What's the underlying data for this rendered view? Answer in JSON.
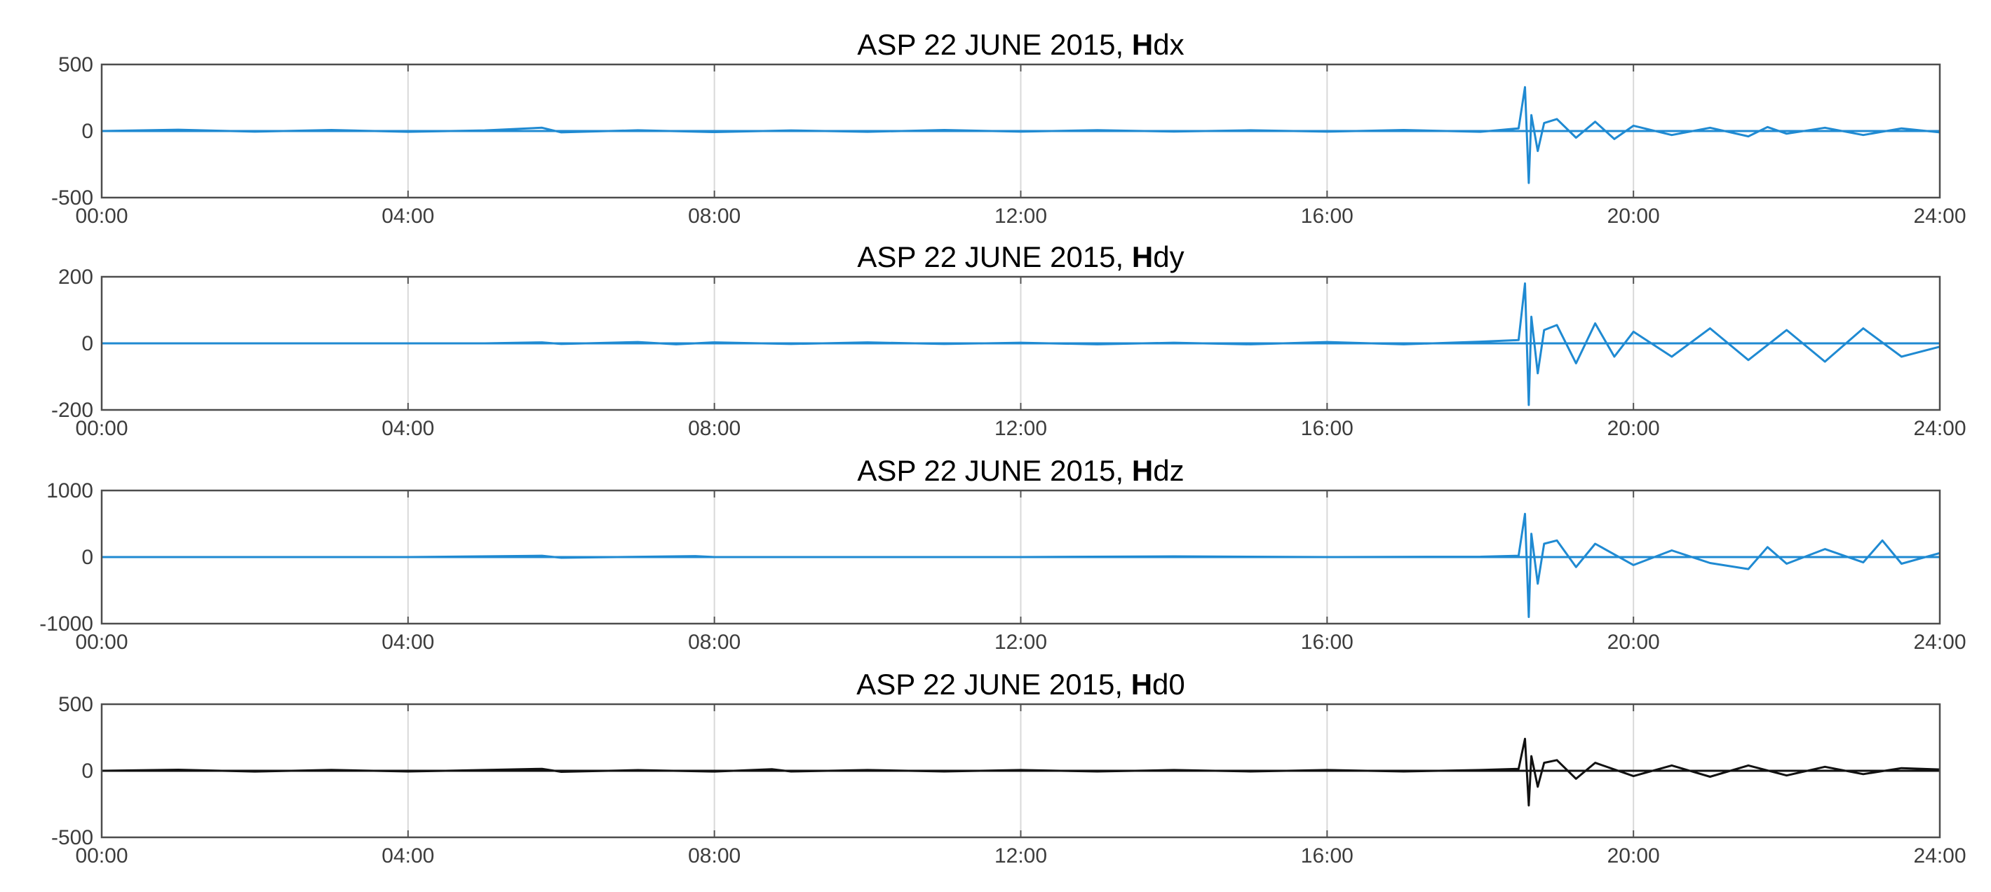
{
  "chart_data": [
    {
      "type": "line",
      "title": "ASP 22 JUNE 2015, Hdx",
      "color": "#1f8ad2",
      "ylim": [
        -500,
        500
      ],
      "yticks": [
        "500",
        "0",
        "-500"
      ],
      "xlim": [
        "00:00",
        "24:00"
      ],
      "xticks": [
        "00:00",
        "04:00",
        "08:00",
        "12:00",
        "16:00",
        "20:00",
        "24:00"
      ],
      "grid": "vertical",
      "series": [
        {
          "x": [
            "00:00",
            "01:00",
            "02:00",
            "03:00",
            "04:00",
            "05:00",
            "05:45",
            "06:00",
            "07:00",
            "08:00",
            "09:00",
            "10:00",
            "11:00",
            "12:00",
            "13:00",
            "14:00",
            "15:00",
            "16:00",
            "17:00",
            "18:00",
            "18:30",
            "18:35",
            "18:38",
            "18:40",
            "18:45",
            "18:50",
            "19:00",
            "19:15",
            "19:30",
            "19:45",
            "20:00",
            "20:30",
            "21:00",
            "21:30",
            "21:45",
            "22:00",
            "22:30",
            "23:00",
            "23:30",
            "24:00"
          ],
          "y": [
            0,
            10,
            -5,
            8,
            -6,
            5,
            25,
            -10,
            6,
            -8,
            5,
            -6,
            8,
            -5,
            7,
            -4,
            6,
            -5,
            8,
            -6,
            20,
            330,
            -390,
            120,
            -150,
            60,
            90,
            -50,
            70,
            -60,
            40,
            -30,
            25,
            -40,
            30,
            -20,
            25,
            -30,
            20,
            -10
          ]
        }
      ]
    },
    {
      "type": "line",
      "title": "ASP 22 JUNE 2015, Hdy",
      "color": "#1f8ad2",
      "ylim": [
        -200,
        200
      ],
      "yticks": [
        "200",
        "0",
        "-200"
      ],
      "xlim": [
        "00:00",
        "24:00"
      ],
      "xticks": [
        "00:00",
        "04:00",
        "08:00",
        "12:00",
        "16:00",
        "20:00",
        "24:00"
      ],
      "grid": "vertical",
      "series": [
        {
          "x": [
            "00:00",
            "01:00",
            "02:00",
            "03:00",
            "04:00",
            "05:00",
            "05:45",
            "06:00",
            "07:00",
            "07:30",
            "08:00",
            "09:00",
            "10:00",
            "11:00",
            "12:00",
            "13:00",
            "14:00",
            "15:00",
            "16:00",
            "17:00",
            "18:00",
            "18:30",
            "18:35",
            "18:38",
            "18:40",
            "18:45",
            "18:50",
            "19:00",
            "19:15",
            "19:30",
            "19:45",
            "20:00",
            "20:30",
            "21:00",
            "21:30",
            "22:00",
            "22:30",
            "23:00",
            "23:30",
            "24:00"
          ],
          "y": [
            0,
            0,
            0,
            0,
            0,
            0,
            3,
            -2,
            4,
            -3,
            3,
            -2,
            3,
            -2,
            2,
            -3,
            2,
            -3,
            4,
            -3,
            5,
            10,
            180,
            -185,
            80,
            -90,
            40,
            55,
            -60,
            60,
            -40,
            35,
            -40,
            45,
            -50,
            40,
            -55,
            45,
            -40,
            -10
          ]
        }
      ]
    },
    {
      "type": "line",
      "title": "ASP 22 JUNE 2015, Hdz",
      "color": "#1f8ad2",
      "ylim": [
        -1000,
        1000
      ],
      "yticks": [
        "1000",
        "0",
        "-1000"
      ],
      "xlim": [
        "00:00",
        "24:00"
      ],
      "xticks": [
        "00:00",
        "04:00",
        "08:00",
        "12:00",
        "16:00",
        "20:00",
        "24:00"
      ],
      "grid": "vertical",
      "series": [
        {
          "x": [
            "00:00",
            "02:00",
            "04:00",
            "05:45",
            "06:00",
            "07:45",
            "08:00",
            "10:00",
            "12:00",
            "14:00",
            "16:00",
            "18:00",
            "18:30",
            "18:35",
            "18:38",
            "18:40",
            "18:45",
            "18:50",
            "19:00",
            "19:15",
            "19:30",
            "20:00",
            "20:30",
            "21:00",
            "21:30",
            "21:45",
            "22:00",
            "22:30",
            "23:00",
            "23:15",
            "23:30",
            "24:00"
          ],
          "y": [
            0,
            0,
            0,
            20,
            -10,
            15,
            0,
            0,
            0,
            10,
            0,
            5,
            20,
            650,
            -900,
            350,
            -400,
            200,
            250,
            -150,
            200,
            -120,
            100,
            -90,
            -180,
            150,
            -100,
            120,
            -80,
            250,
            -100,
            60
          ]
        }
      ]
    },
    {
      "type": "line",
      "title": "ASP 22 JUNE 2015, Hd0",
      "color": "#111111",
      "ylim": [
        -500,
        500
      ],
      "yticks": [
        "500",
        "0",
        "-500"
      ],
      "xlim": [
        "00:00",
        "24:00"
      ],
      "xticks": [
        "00:00",
        "04:00",
        "08:00",
        "12:00",
        "16:00",
        "20:00",
        "24:00"
      ],
      "grid": "vertical",
      "series": [
        {
          "x": [
            "00:00",
            "01:00",
            "02:00",
            "03:00",
            "04:00",
            "05:00",
            "05:45",
            "06:00",
            "07:00",
            "08:00",
            "08:45",
            "09:00",
            "10:00",
            "11:00",
            "12:00",
            "13:00",
            "14:00",
            "15:00",
            "16:00",
            "17:00",
            "18:00",
            "18:30",
            "18:35",
            "18:38",
            "18:40",
            "18:45",
            "18:50",
            "19:00",
            "19:15",
            "19:30",
            "20:00",
            "20:30",
            "21:00",
            "21:30",
            "22:00",
            "22:30",
            "23:00",
            "23:30",
            "24:00"
          ],
          "y": [
            0,
            8,
            -6,
            7,
            -5,
            6,
            15,
            -8,
            5,
            -6,
            12,
            -5,
            6,
            -5,
            6,
            -5,
            6,
            -5,
            6,
            -5,
            6,
            15,
            240,
            -260,
            110,
            -120,
            60,
            80,
            -60,
            60,
            -40,
            40,
            -45,
            40,
            -35,
            30,
            -25,
            20,
            10
          ]
        }
      ]
    }
  ]
}
